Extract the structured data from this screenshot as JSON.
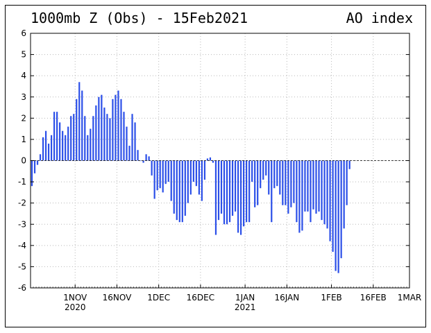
{
  "chart_data": {
    "type": "bar",
    "title": "1000mb Z (Obs) - 15Feb2021",
    "title_right": "AO index",
    "ylim": [
      -6,
      6
    ],
    "y_ticks": [
      "-6",
      "-5",
      "-4",
      "-3",
      "-2",
      "-1",
      "0",
      "1",
      "2",
      "3",
      "4",
      "5",
      "6"
    ],
    "x_ticks": [
      {
        "label": "1NOV",
        "sublabel": "2020",
        "day": 16
      },
      {
        "label": "16NOV",
        "sublabel": "",
        "day": 31
      },
      {
        "label": "1DEC",
        "sublabel": "",
        "day": 46
      },
      {
        "label": "16DEC",
        "sublabel": "",
        "day": 61
      },
      {
        "label": "1JAN",
        "sublabel": "2021",
        "day": 77
      },
      {
        "label": "16JAN",
        "sublabel": "",
        "day": 92
      },
      {
        "label": "1FEB",
        "sublabel": "",
        "day": 108
      },
      {
        "label": "16FEB",
        "sublabel": "",
        "day": 123
      },
      {
        "label": "1MAR",
        "sublabel": "",
        "day": 136
      }
    ],
    "x_range_days": [
      0,
      136
    ],
    "start_date": "2020-10-16",
    "grid": true,
    "bar_color": "#2b4fe8",
    "values": [
      -1.2,
      -0.6,
      -0.2,
      0.3,
      1.1,
      1.4,
      0.8,
      1.2,
      2.3,
      2.3,
      1.8,
      1.4,
      1.2,
      1.6,
      2.1,
      2.2,
      2.9,
      3.7,
      3.3,
      2.1,
      1.2,
      1.5,
      2.1,
      2.6,
      3.0,
      3.1,
      2.5,
      2.2,
      2.0,
      2.9,
      3.1,
      3.3,
      2.9,
      2.3,
      1.6,
      0.7,
      2.2,
      1.8,
      0.5,
      0.0,
      -0.1,
      0.3,
      0.2,
      -0.7,
      -1.8,
      -1.4,
      -1.3,
      -1.5,
      -1.1,
      -1.0,
      -1.9,
      -2.5,
      -2.8,
      -2.9,
      -2.9,
      -2.6,
      -2.0,
      -1.6,
      -1.0,
      -1.2,
      -1.6,
      -1.9,
      -0.9,
      0.1,
      0.15,
      -0.1,
      -3.5,
      -2.8,
      -2.5,
      -3.0,
      -3.0,
      -2.9,
      -2.6,
      -2.4,
      -3.4,
      -3.5,
      -3.1,
      -2.9,
      -2.9,
      -1.0,
      -2.2,
      -2.1,
      -1.3,
      -0.9,
      -0.7,
      -1.6,
      -2.9,
      -1.3,
      -1.2,
      -1.6,
      -2.1,
      -2.1,
      -2.5,
      -2.2,
      -2.0,
      -2.9,
      -3.4,
      -3.3,
      -2.4,
      -2.4,
      -2.9,
      -2.3,
      -2.5,
      -2.4,
      -2.8,
      -3.0,
      -3.2,
      -3.8,
      -4.3,
      -5.2,
      -5.3,
      -4.6,
      -3.2,
      -2.1,
      -0.4
    ]
  }
}
